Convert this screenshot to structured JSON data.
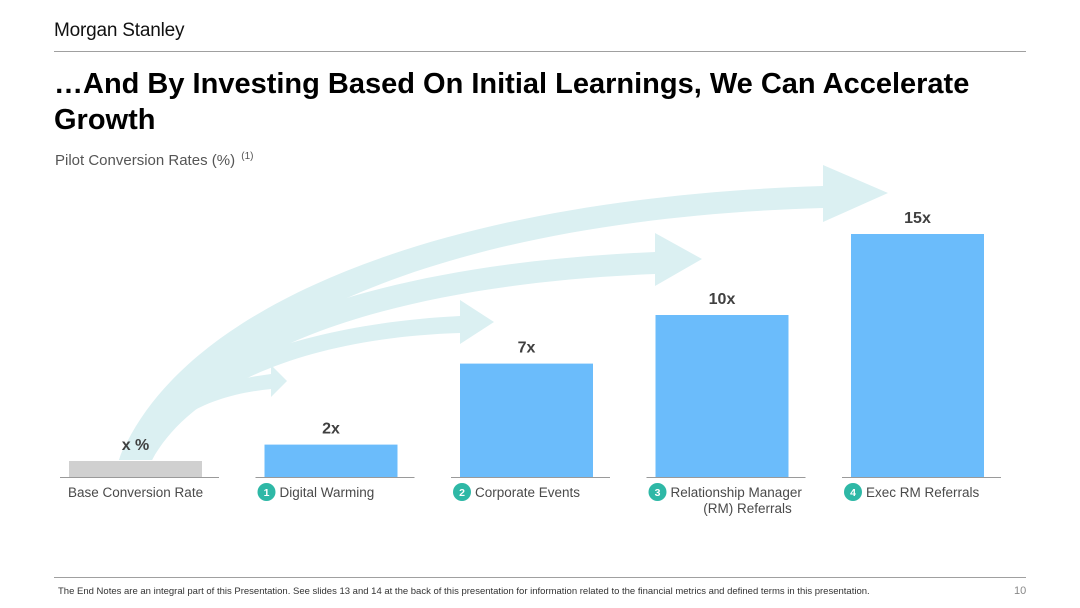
{
  "header": {
    "logo": "Morgan Stanley",
    "title": "…And By Investing Based On Initial Learnings, We Can Accelerate Growth",
    "subtitle": "Pilot Conversion Rates (%)",
    "subtitle_note": "(1)"
  },
  "chart_data": {
    "type": "bar",
    "title": "Pilot Conversion Rates (%)",
    "categories": [
      "Base Conversion Rate",
      "Digital Warming",
      "Corporate Events",
      "Relationship Manager (RM) Referrals",
      "Exec RM Referrals"
    ],
    "category_lines": [
      [
        "Base Conversion Rate"
      ],
      [
        "Digital Warming"
      ],
      [
        "Corporate Events"
      ],
      [
        "Relationship Manager",
        "(RM) Referrals"
      ],
      [
        "Exec RM Referrals"
      ]
    ],
    "numbers": [
      "",
      "1",
      "2",
      "3",
      "4"
    ],
    "values": [
      1,
      2,
      7,
      10,
      15
    ],
    "data_labels": [
      "x %",
      "2x",
      "7x",
      "10x",
      "15x"
    ],
    "bar_colors": [
      "#d0d0d0",
      "#6bbcfb",
      "#6bbcfb",
      "#6bbcfb",
      "#6bbcfb"
    ],
    "number_badge_color": "#2eb8a6",
    "arrow_color": "#dbf0f2",
    "ylim": [
      0,
      15
    ],
    "grid": false,
    "legend": "none"
  },
  "footer": {
    "note": "The End Notes are an integral part of this Presentation. See slides 13 and 14 at the back of this presentation for information related to the financial metrics and defined terms in this presentation.",
    "page": "10"
  }
}
